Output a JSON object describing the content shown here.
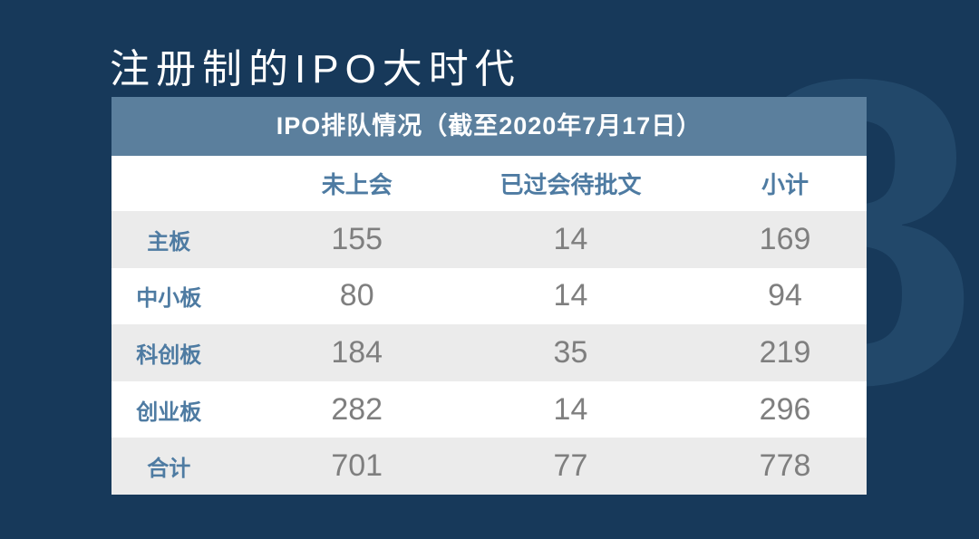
{
  "slide": {
    "title": "注册制的IPO大时代",
    "watermark_digit": "8"
  },
  "table": {
    "caption": "IPO排队情况（截至2020年7月17日）",
    "columns": [
      "",
      "未上会",
      "已过会待批文",
      "小计"
    ],
    "rows": [
      {
        "label": "主板",
        "values": [
          "155",
          "14",
          "169"
        ]
      },
      {
        "label": "中小板",
        "values": [
          "80",
          "14",
          "94"
        ]
      },
      {
        "label": "科创板",
        "values": [
          "184",
          "35",
          "219"
        ]
      },
      {
        "label": "创业板",
        "values": [
          "282",
          "14",
          "296"
        ]
      },
      {
        "label": "合计",
        "values": [
          "701",
          "77",
          "778"
        ]
      }
    ]
  },
  "colors": {
    "background": "#17395A",
    "caption_bg": "#5B7F9D",
    "accent_text": "#4E7BA2",
    "number_text": "#7F7F7F",
    "zebra_row": "#EBEBEB",
    "watermark": "#22486A",
    "title_text": "#FFFFFF"
  }
}
